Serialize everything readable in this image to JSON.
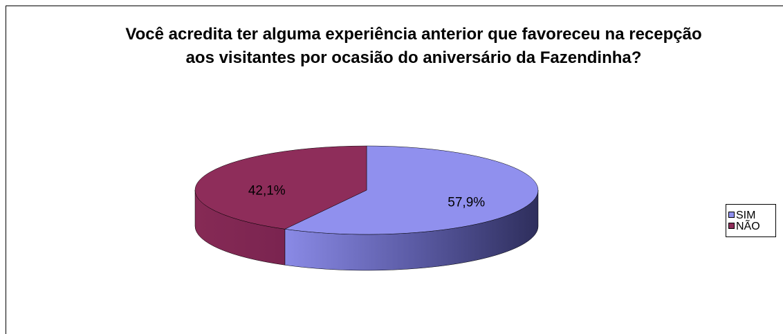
{
  "chart_data": {
    "type": "pie",
    "title": "Você acredita ter alguma experiência anterior que favoreceu na recepção aos visitantes por ocasião do aniversário da Fazendinha?",
    "categories": [
      "SIM",
      "NÃO"
    ],
    "values": [
      57.9,
      42.1
    ],
    "value_labels": [
      "57,9%",
      "42,1%"
    ],
    "colors": [
      "#9090ee",
      "#8e2d5a"
    ],
    "legend": "right"
  }
}
